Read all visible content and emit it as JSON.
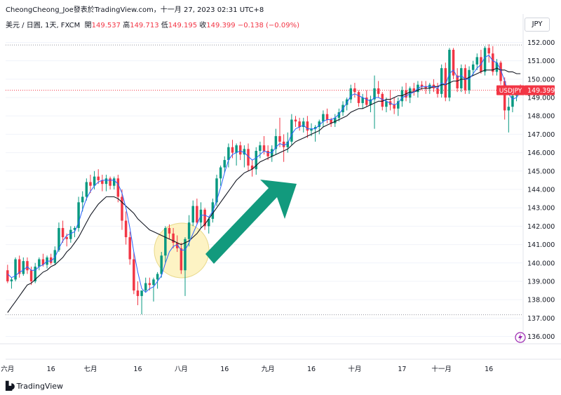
{
  "header": {
    "attribution": "CheongCheong_Joe發表於TradingView.com，十一月 27, 2023 02:31 UTC+8",
    "symbol": "美元 / 日圓, 1天, FXCM",
    "open_label": "開",
    "open": "149.537",
    "high_label": "高",
    "high": "149.713",
    "low_label": "低",
    "low": "149.195",
    "close_label": "收",
    "close": "149.399",
    "change": "−0.138 (−0.09%)"
  },
  "currency": "JPY",
  "price_tag": {
    "symbol": "USDJPY",
    "price": "149.399"
  },
  "brand": "TradingView",
  "colors": {
    "up": "#089981",
    "down": "#f23645",
    "ma_fast": "#2962ff",
    "ma_slow": "#131722",
    "arrow": "#129a7d",
    "highlight": "#fdf3c4"
  },
  "chart_data": {
    "type": "candlestick",
    "y_axis_labels": [
      "152.000",
      "151.000",
      "150.000",
      "149.000",
      "148.000",
      "147.000",
      "146.000",
      "145.000",
      "144.000",
      "143.000",
      "142.000",
      "141.000",
      "140.000",
      "139.000",
      "138.000",
      "137.000",
      "136.000"
    ],
    "ylim": [
      135.6,
      152.4
    ],
    "x_axis_labels": [
      "六月",
      "16",
      "七月",
      "16",
      "八月",
      "16",
      "九月",
      "16",
      "十月",
      "17",
      "十一月",
      "16"
    ],
    "x_label_positions": [
      0,
      11,
      21,
      33,
      44,
      55,
      66,
      77,
      88,
      100,
      110,
      122
    ],
    "dotted_levels": [
      151.86,
      149.399,
      137.18
    ],
    "candles": [
      [
        139.6,
        139.9,
        138.9,
        139.0
      ],
      [
        139.0,
        139.2,
        138.6,
        139.1
      ],
      [
        139.1,
        140.3,
        139.0,
        140.2
      ],
      [
        140.2,
        140.4,
        139.2,
        139.4
      ],
      [
        139.4,
        140.3,
        139.3,
        140.1
      ],
      [
        140.1,
        140.3,
        139.4,
        139.6
      ],
      [
        139.6,
        139.8,
        138.8,
        139.0
      ],
      [
        139.0,
        140.0,
        138.9,
        139.8
      ],
      [
        139.8,
        140.3,
        139.6,
        140.2
      ],
      [
        140.2,
        140.5,
        139.8,
        139.9
      ],
      [
        139.9,
        140.4,
        139.7,
        140.3
      ],
      [
        140.3,
        140.5,
        139.9,
        140.0
      ],
      [
        140.0,
        140.9,
        139.9,
        140.7
      ],
      [
        140.7,
        142.2,
        140.6,
        141.9
      ],
      [
        141.9,
        142.3,
        141.1,
        141.4
      ],
      [
        141.4,
        141.6,
        140.9,
        141.3
      ],
      [
        141.3,
        142.0,
        141.1,
        141.8
      ],
      [
        141.8,
        142.0,
        141.4,
        141.9
      ],
      [
        141.9,
        143.6,
        141.7,
        143.3
      ],
      [
        143.3,
        143.9,
        142.8,
        143.6
      ],
      [
        143.6,
        144.6,
        143.4,
        144.4
      ],
      [
        144.4,
        144.8,
        143.8,
        144.2
      ],
      [
        144.2,
        145.0,
        144.0,
        144.7
      ],
      [
        144.7,
        145.1,
        144.3,
        144.5
      ],
      [
        144.5,
        144.8,
        143.9,
        144.3
      ],
      [
        144.3,
        144.8,
        143.9,
        144.6
      ],
      [
        144.6,
        144.7,
        144.0,
        144.2
      ],
      [
        144.2,
        144.7,
        144.0,
        144.6
      ],
      [
        144.6,
        144.8,
        143.3,
        143.6
      ],
      [
        143.6,
        144.0,
        141.8,
        142.3
      ],
      [
        142.3,
        142.8,
        141.0,
        141.4
      ],
      [
        141.4,
        141.7,
        139.9,
        140.2
      ],
      [
        140.2,
        140.6,
        138.3,
        138.5
      ],
      [
        138.5,
        139.0,
        137.7,
        138.2
      ],
      [
        138.2,
        138.5,
        137.2,
        138.5
      ],
      [
        138.5,
        139.2,
        138.4,
        138.9
      ],
      [
        138.9,
        139.2,
        138.5,
        138.8
      ],
      [
        138.8,
        139.2,
        137.9,
        139.1
      ],
      [
        139.1,
        139.5,
        138.6,
        139.4
      ],
      [
        139.4,
        140.6,
        139.2,
        140.4
      ],
      [
        140.4,
        142.0,
        140.0,
        141.9
      ],
      [
        141.9,
        142.1,
        141.3,
        141.6
      ],
      [
        141.6,
        141.9,
        140.8,
        141.1
      ],
      [
        141.1,
        141.5,
        140.6,
        140.8
      ],
      [
        140.8,
        141.1,
        139.4,
        139.6
      ],
      [
        139.6,
        141.4,
        138.2,
        141.3
      ],
      [
        141.3,
        142.6,
        140.9,
        142.2
      ],
      [
        142.2,
        143.4,
        142.0,
        143.1
      ],
      [
        143.1,
        143.5,
        142.1,
        142.2
      ],
      [
        142.2,
        143.3,
        141.9,
        142.9
      ],
      [
        142.9,
        143.0,
        141.8,
        142.0
      ],
      [
        142.0,
        142.5,
        141.6,
        142.4
      ],
      [
        142.4,
        143.5,
        142.2,
        143.3
      ],
      [
        143.3,
        144.8,
        143.1,
        144.6
      ],
      [
        144.6,
        145.3,
        144.2,
        145.2
      ],
      [
        145.2,
        145.8,
        144.9,
        145.6
      ],
      [
        145.6,
        146.5,
        145.2,
        146.3
      ],
      [
        146.3,
        146.7,
        145.7,
        146.0
      ],
      [
        146.0,
        146.5,
        145.3,
        146.4
      ],
      [
        146.4,
        146.6,
        145.6,
        145.9
      ],
      [
        145.9,
        146.4,
        145.2,
        146.2
      ],
      [
        146.2,
        146.5,
        145.0,
        145.3
      ],
      [
        145.3,
        145.6,
        144.7,
        145.1
      ],
      [
        145.1,
        146.3,
        144.8,
        146.1
      ],
      [
        146.1,
        146.6,
        145.7,
        146.4
      ],
      [
        146.4,
        146.9,
        145.9,
        146.1
      ],
      [
        146.1,
        146.4,
        145.6,
        145.8
      ],
      [
        145.8,
        146.4,
        145.5,
        146.2
      ],
      [
        146.2,
        147.3,
        145.9,
        146.9
      ],
      [
        146.9,
        147.9,
        146.3,
        146.6
      ],
      [
        146.6,
        147.0,
        145.5,
        146.3
      ],
      [
        146.3,
        147.1,
        146.0,
        146.6
      ],
      [
        146.6,
        148.1,
        146.4,
        147.8
      ],
      [
        147.8,
        148.0,
        147.4,
        147.7
      ],
      [
        147.7,
        147.9,
        147.2,
        147.4
      ],
      [
        147.4,
        147.9,
        147.1,
        147.7
      ],
      [
        147.7,
        148.0,
        146.8,
        147.2
      ],
      [
        147.2,
        147.6,
        146.9,
        147.3
      ],
      [
        147.3,
        147.5,
        146.6,
        147.4
      ],
      [
        147.4,
        147.8,
        147.0,
        147.7
      ],
      [
        147.7,
        148.3,
        147.4,
        148.1
      ],
      [
        148.1,
        148.4,
        147.6,
        147.8
      ],
      [
        147.8,
        147.9,
        147.4,
        147.6
      ],
      [
        147.6,
        148.1,
        147.4,
        147.9
      ],
      [
        147.9,
        148.4,
        147.7,
        148.2
      ],
      [
        148.2,
        148.8,
        148.0,
        148.6
      ],
      [
        148.6,
        149.0,
        148.3,
        148.9
      ],
      [
        148.9,
        149.7,
        148.7,
        149.5
      ],
      [
        149.5,
        149.8,
        149.0,
        149.3
      ],
      [
        149.3,
        149.4,
        148.5,
        148.7
      ],
      [
        148.7,
        149.2,
        148.4,
        149.0
      ],
      [
        149.0,
        149.4,
        148.5,
        148.6
      ],
      [
        148.6,
        149.1,
        148.2,
        148.9
      ],
      [
        148.9,
        150.2,
        147.3,
        149.5
      ],
      [
        149.5,
        149.9,
        149.0,
        149.2
      ],
      [
        149.2,
        149.3,
        148.3,
        148.5
      ],
      [
        148.5,
        149.0,
        148.2,
        148.8
      ],
      [
        148.8,
        149.4,
        148.3,
        148.6
      ],
      [
        148.6,
        149.0,
        148.1,
        148.4
      ],
      [
        148.4,
        149.0,
        148.0,
        148.8
      ],
      [
        148.8,
        149.6,
        148.5,
        149.4
      ],
      [
        149.4,
        149.8,
        148.8,
        149.0
      ],
      [
        149.0,
        149.6,
        148.7,
        149.5
      ],
      [
        149.5,
        149.8,
        149.1,
        149.3
      ],
      [
        149.3,
        149.9,
        149.0,
        149.7
      ],
      [
        149.7,
        149.9,
        149.4,
        149.6
      ],
      [
        149.6,
        149.9,
        149.2,
        149.5
      ],
      [
        149.5,
        149.8,
        149.2,
        149.7
      ],
      [
        149.7,
        150.0,
        149.3,
        149.5
      ],
      [
        149.5,
        149.8,
        149.0,
        149.2
      ],
      [
        149.2,
        150.8,
        149.0,
        150.6
      ],
      [
        150.6,
        150.9,
        148.8,
        149.0
      ],
      [
        149.0,
        151.7,
        148.8,
        151.6
      ],
      [
        151.6,
        151.7,
        150.0,
        150.2
      ],
      [
        150.2,
        150.6,
        149.3,
        149.5
      ],
      [
        149.5,
        150.8,
        149.3,
        150.6
      ],
      [
        150.6,
        150.8,
        149.2,
        149.4
      ],
      [
        149.4,
        150.7,
        149.2,
        150.5
      ],
      [
        150.5,
        151.0,
        150.2,
        150.8
      ],
      [
        150.8,
        151.4,
        150.5,
        151.2
      ],
      [
        151.2,
        151.6,
        150.3,
        150.4
      ],
      [
        150.4,
        151.8,
        150.2,
        151.7
      ],
      [
        151.7,
        151.9,
        150.9,
        151.4
      ],
      [
        151.4,
        151.8,
        150.2,
        150.4
      ],
      [
        150.4,
        151.1,
        150.2,
        150.9
      ],
      [
        150.9,
        151.0,
        149.7,
        149.9
      ],
      [
        149.9,
        150.1,
        147.8,
        148.3
      ],
      [
        148.3,
        149.0,
        147.1,
        148.5
      ],
      [
        148.5,
        149.3,
        148.2,
        149.1
      ],
      [
        149.1,
        149.6,
        148.8,
        149.4
      ],
      [
        149.537,
        149.713,
        149.195,
        149.399
      ]
    ],
    "ma_fast": [
      139.4,
      139.2,
      139.3,
      139.5,
      139.6,
      139.8,
      139.6,
      139.6,
      139.8,
      139.9,
      140.1,
      140.1,
      140.3,
      140.8,
      141.2,
      141.5,
      141.6,
      141.7,
      142.2,
      142.9,
      143.5,
      143.9,
      144.2,
      144.4,
      144.5,
      144.5,
      144.5,
      144.5,
      144.3,
      143.8,
      143.0,
      141.9,
      140.6,
      139.5,
      138.6,
      138.4,
      138.6,
      138.7,
      139.0,
      139.3,
      140.0,
      140.6,
      140.9,
      141.0,
      140.7,
      140.7,
      141.1,
      141.6,
      142.1,
      142.6,
      142.6,
      142.5,
      142.8,
      143.4,
      144.1,
      144.9,
      145.6,
      145.9,
      146.0,
      146.1,
      146.0,
      145.8,
      145.6,
      145.7,
      145.9,
      146.1,
      146.0,
      146.0,
      146.3,
      146.5,
      146.4,
      146.5,
      147.0,
      147.3,
      147.4,
      147.5,
      147.3,
      147.3,
      147.3,
      147.5,
      147.7,
      147.8,
      147.8,
      147.9,
      148.1,
      148.4,
      148.7,
      149.1,
      149.2,
      149.1,
      149.0,
      148.9,
      148.8,
      149.0,
      149.0,
      148.9,
      148.8,
      148.7,
      148.6,
      148.7,
      149.0,
      149.1,
      149.2,
      149.3,
      149.5,
      149.6,
      149.6,
      149.6,
      149.6,
      149.5,
      149.8,
      149.7,
      150.3,
      150.5,
      150.1,
      150.2,
      150.0,
      150.0,
      150.3,
      150.6,
      150.8,
      151.2,
      151.3,
      151.0,
      150.9,
      150.5,
      149.9,
      149.2,
      148.9,
      149.0,
      149.3
    ],
    "ma_slow": [
      137.3,
      137.6,
      137.9,
      138.2,
      138.5,
      138.8,
      138.9,
      139.1,
      139.3,
      139.5,
      139.6,
      139.8,
      139.9,
      140.1,
      140.3,
      140.6,
      140.8,
      141.1,
      141.4,
      141.8,
      142.2,
      142.6,
      142.9,
      143.2,
      143.4,
      143.6,
      143.6,
      143.6,
      143.5,
      143.3,
      143.1,
      142.9,
      142.7,
      142.4,
      142.2,
      142.0,
      141.8,
      141.7,
      141.6,
      141.5,
      141.4,
      141.3,
      141.2,
      141.1,
      141.0,
      141.1,
      141.2,
      141.4,
      141.6,
      141.9,
      142.1,
      142.4,
      142.7,
      143.0,
      143.3,
      143.6,
      143.9,
      144.2,
      144.5,
      144.7,
      144.9,
      145.0,
      145.1,
      145.3,
      145.5,
      145.6,
      145.7,
      145.8,
      145.9,
      146.0,
      146.1,
      146.2,
      146.4,
      146.6,
      146.7,
      146.8,
      146.9,
      147.0,
      147.1,
      147.2,
      147.4,
      147.5,
      147.6,
      147.7,
      147.8,
      147.9,
      148.0,
      148.2,
      148.3,
      148.4,
      148.4,
      148.5,
      148.6,
      148.7,
      148.8,
      148.8,
      148.9,
      148.9,
      149.0,
      149.1,
      149.1,
      149.2,
      149.3,
      149.3,
      149.4,
      149.5,
      149.5,
      149.5,
      149.6,
      149.6,
      149.7,
      149.7,
      149.8,
      149.9,
      149.9,
      150.0,
      150.0,
      150.1,
      150.2,
      150.3,
      150.4,
      150.5,
      150.5,
      150.5,
      150.6,
      150.5,
      150.5,
      150.4,
      150.4,
      150.3,
      150.3
    ]
  }
}
